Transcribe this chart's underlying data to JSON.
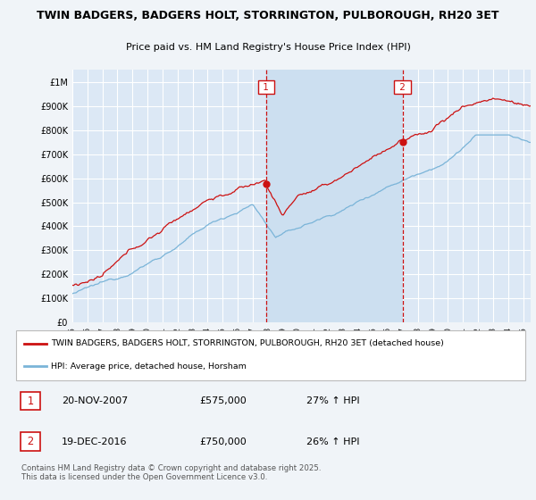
{
  "title_line1": "TWIN BADGERS, BADGERS HOLT, STORRINGTON, PULBOROUGH, RH20 3ET",
  "title_line2": "Price paid vs. HM Land Registry's House Price Index (HPI)",
  "background_color": "#f0f4f8",
  "plot_bg_color": "#dce8f5",
  "highlight_bg_color": "#ccdff0",
  "grid_color": "#ffffff",
  "red_line_label": "TWIN BADGERS, BADGERS HOLT, STORRINGTON, PULBOROUGH, RH20 3ET (detached house)",
  "blue_line_label": "HPI: Average price, detached house, Horsham",
  "annotation1": {
    "num": "1",
    "date": "20-NOV-2007",
    "price": "£575,000",
    "change": "27% ↑ HPI"
  },
  "annotation2": {
    "num": "2",
    "date": "19-DEC-2016",
    "price": "£750,000",
    "change": "26% ↑ HPI"
  },
  "footnote": "Contains HM Land Registry data © Crown copyright and database right 2025.\nThis data is licensed under the Open Government Licence v3.0.",
  "vline1_x": 2007.89,
  "vline2_x": 2016.97,
  "ylim": [
    0,
    1050000
  ],
  "xlim_start": 1995.0,
  "xlim_end": 2025.5
}
